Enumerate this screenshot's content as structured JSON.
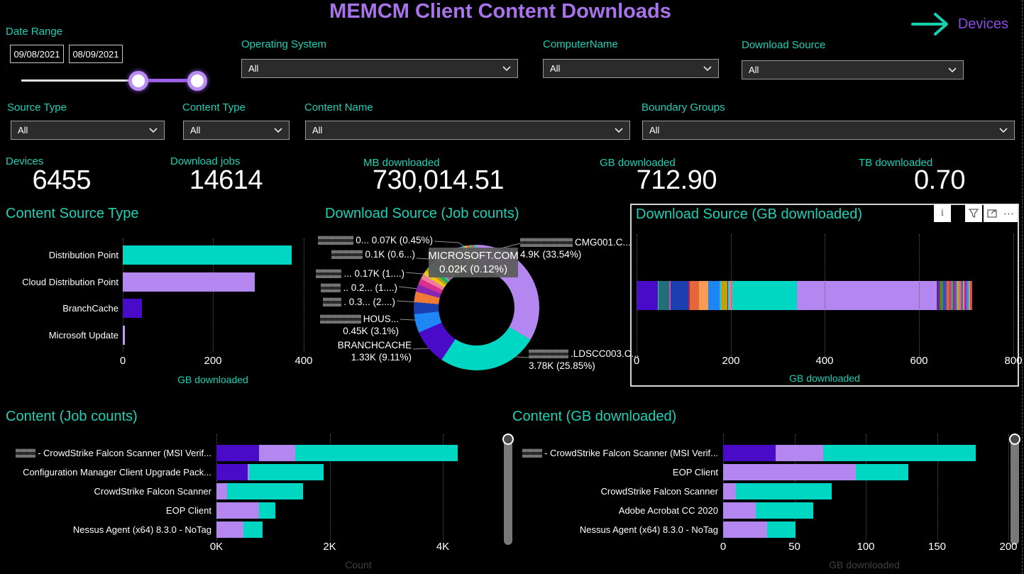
{
  "page": {
    "title": "MEMCM Client Content Downloads",
    "nav": {
      "devices_label": "Devices"
    }
  },
  "colors": {
    "accent_teal": "#00d7c3",
    "accent_purple": "#b487f0",
    "accent_indigo": "#4a0bc8",
    "heading_teal": "#1fd0b6",
    "title_purple": "#a873ea"
  },
  "filters": {
    "date_range": {
      "label": "Date Range",
      "start": "09/08/2021",
      "end": "08/09/2021"
    },
    "dropdowns": [
      {
        "label": "Operating System",
        "value": "All"
      },
      {
        "label": "ComputerName",
        "value": "All"
      },
      {
        "label": "Download Source",
        "value": "All"
      },
      {
        "label": "Source Type",
        "value": "All"
      },
      {
        "label": "Content Type",
        "value": "All"
      },
      {
        "label": "Content Name",
        "value": "All"
      },
      {
        "label": "Boundary Groups",
        "value": "All"
      }
    ]
  },
  "kpis": [
    {
      "label": "Devices",
      "value": "6455"
    },
    {
      "label": "Download jobs",
      "value": "14614"
    },
    {
      "label": "MB downloaded",
      "value": "730,014.51"
    },
    {
      "label": "GB downloaded",
      "value": "712.90"
    },
    {
      "label": "TB downloaded",
      "value": "0.70"
    }
  ],
  "visual_header_icons": [
    "info-icon",
    "filter-icon",
    "focus-mode-icon",
    "more-options-icon"
  ],
  "chart_data": [
    {
      "id": "content_source_type",
      "type": "bar",
      "title": "Content Source Type",
      "xlabel": "GB downloaded",
      "xticks": [
        "0",
        "200",
        "400"
      ],
      "xlim": [
        0,
        400
      ],
      "categories": [
        "Distribution Point",
        "Cloud Distribution Point",
        "BranchCache",
        "Microsoft Update"
      ],
      "values": [
        373,
        291,
        43,
        4
      ],
      "bar_colors": [
        "#00d7c3",
        "#b487f0",
        "#4a0bc8",
        "#b9a0e8"
      ]
    },
    {
      "id": "download_source_jobs",
      "type": "pie",
      "title": "Download Source (Job counts)",
      "slices": [
        {
          "color": "#b487f0",
          "pct": 33.54
        },
        {
          "color": "#00d7c3",
          "pct": 25.85
        },
        {
          "color": "#4a0bc8",
          "pct": 9.11
        },
        {
          "color": "#1e86f5",
          "pct": 4.8
        },
        {
          "color": "#1b3fae",
          "pct": 3.1
        },
        {
          "color": "#ee7a34",
          "pct": 2.7
        },
        {
          "color": "#8727b0",
          "pct": 1.9
        },
        {
          "color": "#d9308f",
          "pct": 1.6
        },
        {
          "color": "#ef7d9a",
          "pct": 1.3
        },
        {
          "color": "#e8c51e",
          "pct": 1.1
        },
        {
          "color": "#b8a10f",
          "pct": 0.9
        },
        {
          "color": "#16a87c",
          "pct": 0.68
        },
        {
          "color": "#35b44a",
          "pct": 0.55
        },
        {
          "color": "#29c7e0",
          "pct": 0.45
        }
      ],
      "other_slice_colors": [
        "#e84c3d",
        "#9b59b6",
        "#3498db",
        "#1abc9c",
        "#f1c40f",
        "#e67e22",
        "#c0392b",
        "#2980b9",
        "#27ae60",
        "#8e44ad",
        "#f39c12",
        "#d35400",
        "#16a085",
        "#5dade2",
        "#af7ac5",
        "#f5b041",
        "#45b39d",
        "#ec7063",
        "#a569bd",
        "#5499c7",
        "#48c9b0",
        "#f4d03f",
        "#eb984e",
        "#cd6155",
        "#52be80",
        "#e74c8c",
        "#7f8c8d",
        "#2ecc71"
      ],
      "other_slices_total_pct": 12.42,
      "callouts_left": [
        {
          "redact": 50,
          "text": "0... 0.07K (0.45%)"
        },
        {
          "redact": 44,
          "text": "0.1K (0.6...)"
        },
        {
          "redact": 36,
          "text": "... 0.17K (1....)"
        },
        {
          "redact": 28,
          "text": ".. 0.2... (1....)"
        },
        {
          "redact": 26,
          "text": ". 0.3... (2....)"
        },
        {
          "redact": 58,
          "text": "HOUS...",
          "line2": "0.45K (3.1%)"
        },
        {
          "redact": 0,
          "text": "BRANCHCACHE",
          "line2": "1.33K (9.11%)"
        }
      ],
      "callouts_right": [
        {
          "redact": 74,
          "text": "CMG001.C...",
          "line2": "4.9K (33.54%)"
        },
        {
          "redact": 56,
          "text": ".LDSCC003.C...",
          "line2": "3.78K (25.85%)"
        }
      ],
      "center_label": {
        "line1": "MICROSOFT.COM",
        "line2": "0.02K (0.12%)"
      }
    },
    {
      "id": "download_source_gb",
      "type": "area",
      "title": "Download Source (GB downloaded)",
      "xlabel": "GB downloaded",
      "xticks": [
        "0",
        "200",
        "400",
        "600",
        "800"
      ],
      "xlim": [
        0,
        800
      ],
      "total_gb": 712.9,
      "segments": [
        {
          "color": "#4a0bc8",
          "value": 45
        },
        {
          "color": "#3ecf6e",
          "value": 2
        },
        {
          "color": "#20707a",
          "value": 23
        },
        {
          "color": "#d849a8",
          "value": 2
        },
        {
          "color": "#1b3fae",
          "value": 38
        },
        {
          "color": "#b01e50",
          "value": 3
        },
        {
          "color": "#e2673a",
          "value": 20
        },
        {
          "color": "#f79b56",
          "value": 19
        },
        {
          "color": "#1e86f0",
          "value": 24
        },
        {
          "color": "#18c4e8",
          "value": 3
        },
        {
          "color": "#bfa10f",
          "value": 14
        },
        {
          "color": "#8b1a1a",
          "value": 2
        },
        {
          "color": "#22d3ee",
          "value": 3
        },
        {
          "color": "#f27d98",
          "value": 5
        },
        {
          "color": "#00d7c3",
          "value": 137
        },
        {
          "color": "#b487f0",
          "value": 298
        },
        {
          "color": "#5b2d8e",
          "value": 5
        },
        {
          "color": "#7a6c1e",
          "value": 4
        },
        {
          "color": "#3f8f3f",
          "value": 4
        },
        {
          "color": "#2255cc",
          "value": 4
        },
        {
          "color": "#8833aa",
          "value": 4
        },
        {
          "color": "#cc7722",
          "value": 4
        },
        {
          "color": "#dd3377",
          "value": 5
        },
        {
          "color": "#22aa99",
          "value": 4
        },
        {
          "color": "#cc2222",
          "value": 4
        },
        {
          "color": "#6644ff",
          "value": 4
        },
        {
          "color": "#99bb22",
          "value": 4
        },
        {
          "color": "#ee6699",
          "value": 5
        },
        {
          "color": "#447788",
          "value": 4
        },
        {
          "color": "#ff8844",
          "value": 4
        },
        {
          "color": "#aa22cc",
          "value": 4
        },
        {
          "color": "#2299ee",
          "value": 4
        },
        {
          "color": "#ccaa33",
          "value": 4
        },
        {
          "color": "#e0445a",
          "value": 4
        }
      ]
    },
    {
      "id": "content_jobs",
      "type": "bar",
      "title": "Content (Job counts)",
      "xlabel": "Count",
      "xticks": [
        "0K",
        "2K",
        "4K"
      ],
      "xlim": [
        0,
        5150
      ],
      "rows": [
        {
          "redact": 28,
          "label": "- CrowdStrike Falcon Scanner (MSI Verif...",
          "segments": [
            {
              "color": "#4a0bc8",
              "value": 750
            },
            {
              "color": "#b487f0",
              "value": 640
            },
            {
              "color": "#00d7c3",
              "value": 2870
            }
          ]
        },
        {
          "redact": 0,
          "label": "Configuration Manager Client Upgrade Pack...",
          "segments": [
            {
              "color": "#4a0bc8",
              "value": 550
            },
            {
              "color": "#b487f0",
              "value": 30
            },
            {
              "color": "#00d7c3",
              "value": 1310
            }
          ]
        },
        {
          "redact": 0,
          "label": "CrowdStrike Falcon Scanner",
          "segments": [
            {
              "color": "#b487f0",
              "value": 190
            },
            {
              "color": "#00d7c3",
              "value": 1340
            }
          ]
        },
        {
          "redact": 0,
          "label": "EOP Client",
          "segments": [
            {
              "color": "#b487f0",
              "value": 750
            },
            {
              "color": "#00d7c3",
              "value": 290
            }
          ]
        },
        {
          "redact": 0,
          "label": "Nessus Agent (x64) 8.3.0 - NoTag",
          "segments": [
            {
              "color": "#b487f0",
              "value": 480
            },
            {
              "color": "#00d7c3",
              "value": 340
            }
          ]
        }
      ]
    },
    {
      "id": "content_gb",
      "type": "bar",
      "title": "Content (GB downloaded)",
      "xlabel": "GB downloaded",
      "xticks": [
        "0",
        "50",
        "100",
        "150",
        "200"
      ],
      "xlim": [
        0,
        204
      ],
      "rows": [
        {
          "redact": 28,
          "label": "- CrowdStrike Falcon Scanner (MSI Verif...",
          "segments": [
            {
              "color": "#4a0bc8",
              "value": 37
            },
            {
              "color": "#b487f0",
              "value": 33
            },
            {
              "color": "#00d7c3",
              "value": 107
            }
          ]
        },
        {
          "redact": 0,
          "label": "EOP Client",
          "segments": [
            {
              "color": "#b487f0",
              "value": 93
            },
            {
              "color": "#00d7c3",
              "value": 37
            }
          ]
        },
        {
          "redact": 0,
          "label": "CrowdStrike Falcon Scanner",
          "segments": [
            {
              "color": "#b487f0",
              "value": 9
            },
            {
              "color": "#00d7c3",
              "value": 67
            }
          ]
        },
        {
          "redact": 0,
          "label": "Adobe Acrobat CC 2020",
          "segments": [
            {
              "color": "#b487f0",
              "value": 23
            },
            {
              "color": "#00d7c3",
              "value": 40
            }
          ]
        },
        {
          "redact": 0,
          "label": "Nessus Agent (x64) 8.3.0 - NoTag",
          "segments": [
            {
              "color": "#b487f0",
              "value": 31
            },
            {
              "color": "#00d7c3",
              "value": 20
            }
          ]
        }
      ]
    }
  ]
}
